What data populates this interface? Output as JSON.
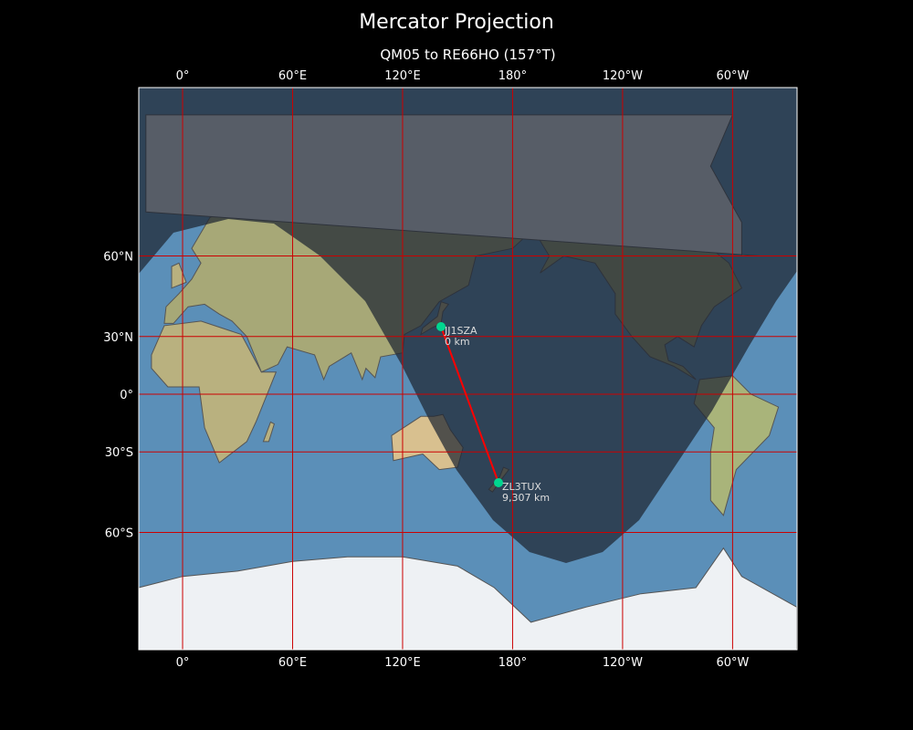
{
  "title": "Mercator Projection",
  "subtitle": "QM05 to RE66HO (157°T)",
  "x_ticks": [
    "0°",
    "60°E",
    "120°E",
    "180°",
    "120°W",
    "60°W"
  ],
  "y_ticks": [
    "60°N",
    "30°N",
    "0°",
    "30°S",
    "60°S"
  ],
  "stations": [
    {
      "call": "JJ1SZA",
      "distance": "0 km"
    },
    {
      "call": "ZL3TUX",
      "distance": "9,307 km"
    }
  ],
  "colors": {
    "path": "#ff0000",
    "marker": "#00d68f",
    "grid": "#cc0000",
    "ocean": "#5b8fb8",
    "night": "#2a3440"
  }
}
